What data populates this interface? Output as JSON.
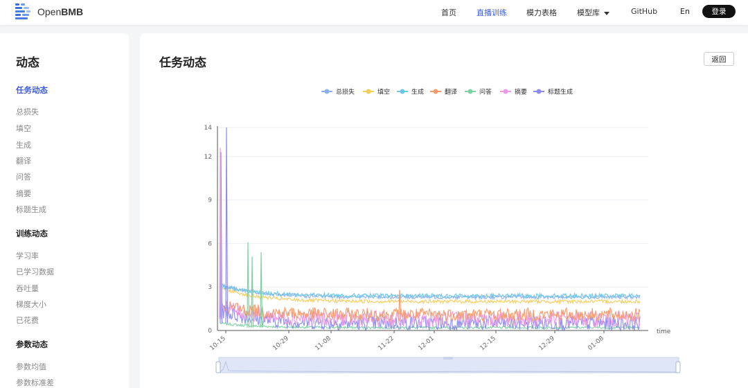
{
  "header": {
    "logo_prefix": "Open",
    "logo_bold": "BMB",
    "nav": [
      {
        "label": "首页",
        "active": false
      },
      {
        "label": "直播训练",
        "active": true
      },
      {
        "label": "模力表格",
        "active": false
      },
      {
        "label": "模型库",
        "active": false,
        "dropdown": true
      },
      {
        "label": "GitHub",
        "active": false
      }
    ],
    "lang": "En",
    "login": "登录"
  },
  "sidebar": {
    "title": "动态",
    "active_item": "任务动态",
    "group1": [
      "总损失",
      "填空",
      "生成",
      "翻译",
      "问答",
      "摘要",
      "标题生成"
    ],
    "section2": "训练动态",
    "group2": [
      "学习率",
      "已学习数据",
      "吞吐量",
      "梯度大小",
      "已花费"
    ],
    "section3": "参数动态",
    "group3": [
      "参数均值",
      "参数标准差"
    ]
  },
  "main": {
    "title": "任务动态",
    "back": "返回"
  },
  "chart_data": {
    "type": "line",
    "legend_position": "top-center",
    "series": [
      {
        "name": "总损失",
        "color": "#8fb0ea"
      },
      {
        "name": "填空",
        "color": "#f2cd5e"
      },
      {
        "name": "生成",
        "color": "#6cc6e8"
      },
      {
        "name": "翻译",
        "color": "#f29b6b"
      },
      {
        "name": "问答",
        "color": "#7dd3a3"
      },
      {
        "name": "摘要",
        "color": "#ef9ae0"
      },
      {
        "name": "标题生成",
        "color": "#8c8ced"
      }
    ],
    "y_ticks": [
      "0",
      "3",
      "6",
      "9",
      "12",
      "14"
    ],
    "x_ticks": [
      "10-15",
      "10-29",
      "11-08",
      "11-22",
      "12-01",
      "12-15",
      "12-29",
      "01-08"
    ],
    "xlabel": "time",
    "ylim": [
      0,
      14
    ],
    "grid": true,
    "approx_levels": {
      "总损失": 2.3,
      "填空": 2.0,
      "生成": 2.4,
      "翻译": 1.1,
      "问答": 0.2,
      "摘要": 0.8,
      "标题生成": 0.5
    }
  }
}
